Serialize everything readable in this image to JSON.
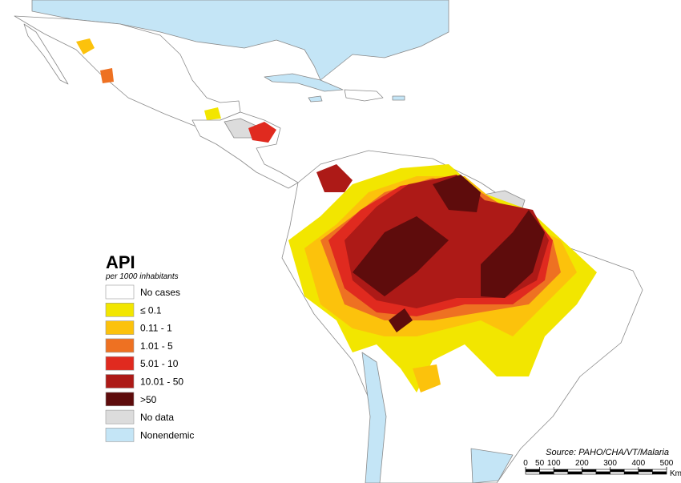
{
  "legend": {
    "title": "API",
    "subtitle": "per 1000 inhabitants",
    "items": [
      {
        "label": "No cases",
        "color": "#ffffff"
      },
      {
        "label": "≤ 0.1",
        "color": "#f2e600"
      },
      {
        "label": "0.11 - 1",
        "color": "#fcc20c"
      },
      {
        "label": "1.01 - 5",
        "color": "#ee7122"
      },
      {
        "label": "5.01 - 10",
        "color": "#e02a1f"
      },
      {
        "label": "10.01 - 50",
        "color": "#ad1a17"
      },
      {
        "label": ">50",
        "color": "#5e0c0c"
      },
      {
        "label": "No data",
        "color": "#dcdcdc"
      },
      {
        "label": "Nonendemic",
        "color": "#c4e5f6"
      }
    ]
  },
  "source": "Source: PAHO/CHA/VT/Malaria",
  "scale_bar": {
    "ticks": [
      0,
      50,
      100,
      200,
      300,
      400,
      500
    ],
    "unit": "Km"
  }
}
